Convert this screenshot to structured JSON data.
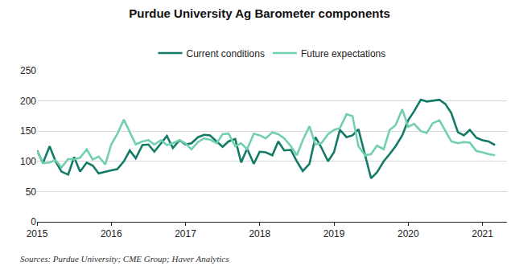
{
  "chart_data": {
    "type": "line",
    "title": "Purdue University Ag Barometer components",
    "source": "Sources: Purdue University; CME Group; Haver Analytics",
    "x": [
      2015,
      2015.08,
      2015.17,
      2015.25,
      2015.33,
      2015.42,
      2015.5,
      2015.58,
      2015.67,
      2015.75,
      2015.83,
      2015.92,
      2016,
      2016.08,
      2016.17,
      2016.25,
      2016.33,
      2016.42,
      2016.5,
      2016.58,
      2016.67,
      2016.75,
      2016.83,
      2016.92,
      2017,
      2017.08,
      2017.17,
      2017.25,
      2017.33,
      2017.42,
      2017.5,
      2017.58,
      2017.67,
      2017.75,
      2017.83,
      2017.92,
      2018,
      2018.08,
      2018.17,
      2018.25,
      2018.33,
      2018.42,
      2018.5,
      2018.58,
      2018.67,
      2018.75,
      2018.83,
      2018.92,
      2019,
      2019.08,
      2019.17,
      2019.25,
      2019.33,
      2019.42,
      2019.5,
      2019.58,
      2019.67,
      2019.75,
      2019.83,
      2019.92,
      2020,
      2020.08,
      2020.17,
      2020.25,
      2020.33,
      2020.42,
      2020.5,
      2020.58,
      2020.67,
      2020.75,
      2020.83,
      2020.92,
      2021,
      2021.08,
      2021.17
    ],
    "series": [
      {
        "name": "Current conditions",
        "color": "#137a67",
        "values": [
          118,
          97,
          125,
          100,
          83,
          78,
          107,
          83,
          98,
          93,
          80,
          83,
          85,
          87,
          100,
          118,
          105,
          127,
          128,
          116,
          130,
          142,
          122,
          135,
          128,
          130,
          140,
          144,
          143,
          133,
          124,
          133,
          137,
          98,
          121,
          96,
          116,
          115,
          110,
          133,
          118,
          119,
          100,
          84,
          96,
          140,
          123,
          100,
          115,
          152,
          140,
          143,
          153,
          110,
          72,
          82,
          100,
          112,
          125,
          143,
          168,
          183,
          202,
          199,
          200,
          202,
          195,
          180,
          148,
          143,
          152,
          139,
          135,
          133,
          127
        ]
      },
      {
        "name": "Future expectations",
        "color": "#72cfaf",
        "values": [
          117,
          97,
          98,
          102,
          90,
          104,
          103,
          106,
          120,
          103,
          108,
          95,
          128,
          145,
          169,
          148,
          128,
          133,
          135,
          128,
          135,
          127,
          130,
          135,
          130,
          120,
          132,
          138,
          136,
          130,
          145,
          146,
          125,
          130,
          120,
          146,
          143,
          138,
          148,
          145,
          138,
          125,
          110,
          135,
          158,
          128,
          130,
          145,
          152,
          155,
          178,
          175,
          125,
          110,
          112,
          126,
          120,
          152,
          160,
          186,
          157,
          162,
          150,
          147,
          163,
          168,
          150,
          133,
          130,
          132,
          131,
          117,
          115,
          112,
          110
        ]
      }
    ],
    "xlim": [
      2015,
      2021.33
    ],
    "xticks": [
      2015,
      2016,
      2017,
      2018,
      2019,
      2020,
      2021
    ],
    "ylim": [
      0,
      250
    ],
    "yticks": [
      0,
      50,
      100,
      150,
      200,
      250
    ],
    "grid": true,
    "legend": "top"
  }
}
